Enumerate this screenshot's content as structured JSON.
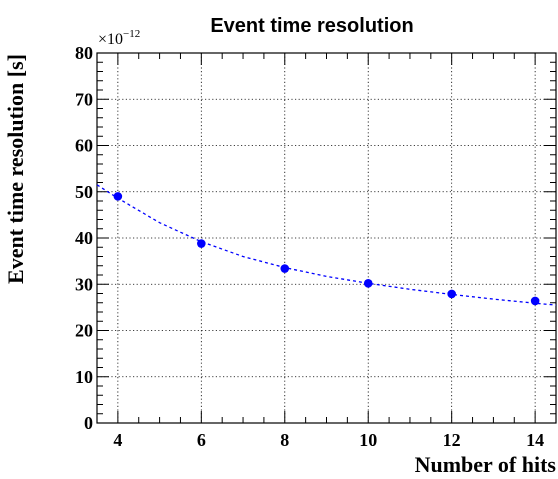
{
  "chart_data": {
    "type": "scatter",
    "title": "Event time resolution",
    "xlabel": "Number of hits",
    "ylabel": "Event time resolution [s]",
    "y_multiplier_label": "×10",
    "y_multiplier_exponent": "−12",
    "xlim": [
      3.5,
      14.5
    ],
    "ylim": [
      0,
      80
    ],
    "x_ticks": [
      4,
      6,
      8,
      10,
      12,
      14
    ],
    "y_ticks": [
      0,
      10,
      20,
      30,
      40,
      50,
      60,
      70,
      80
    ],
    "x_tick_labels": [
      "4",
      "6",
      "8",
      "10",
      "12",
      "14"
    ],
    "y_tick_labels": [
      "0",
      "10",
      "20",
      "30",
      "40",
      "50",
      "60",
      "70",
      "80"
    ],
    "grid": true,
    "series": [
      {
        "x": [
          4,
          6,
          8,
          10,
          12,
          14
        ],
        "y": [
          49.0,
          38.8,
          33.4,
          30.2,
          27.9,
          26.4
        ],
        "color": "#0000ff"
      }
    ],
    "fit": {
      "style": "dashed",
      "color": "#0000ff",
      "x": [
        3.5,
        4,
        5,
        6,
        7,
        8,
        9,
        10,
        11,
        12,
        13,
        14,
        14.5
      ],
      "y": [
        51.5,
        48.6,
        43.3,
        39.2,
        36.0,
        33.6,
        31.7,
        30.2,
        28.9,
        27.8,
        26.8,
        25.9,
        25.5
      ]
    }
  }
}
